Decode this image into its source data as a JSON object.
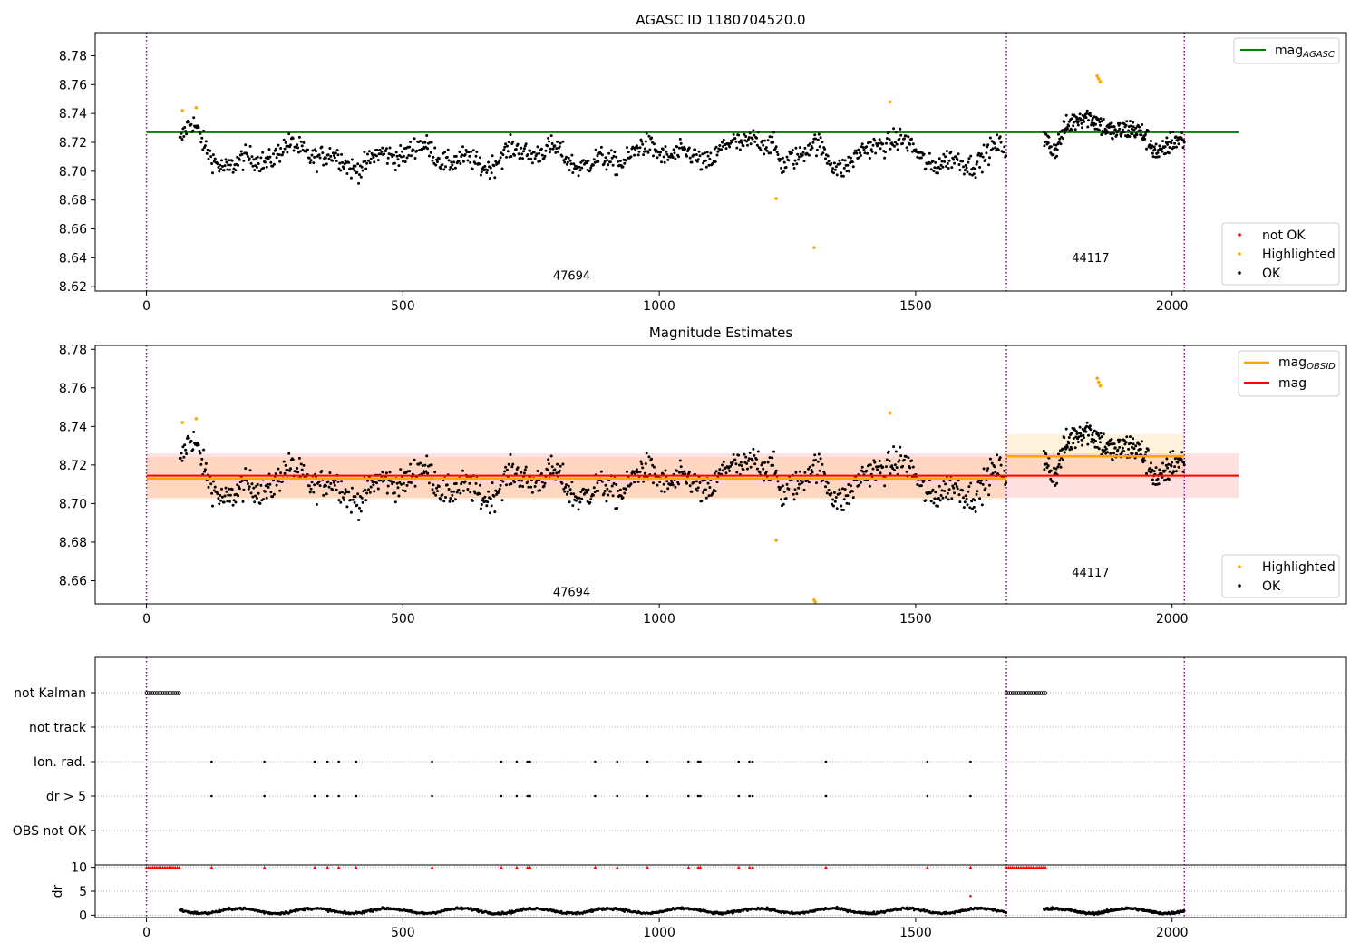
{
  "chart_data": [
    {
      "type": "scatter",
      "title": "AGASC ID 1180704520.0",
      "xlim": [
        -100,
        2340
      ],
      "ylim": [
        8.617,
        8.796
      ],
      "x_ticks": [
        0,
        500,
        1000,
        1500,
        2000
      ],
      "y_ticks": [
        8.62,
        8.64,
        8.66,
        8.68,
        8.7,
        8.72,
        8.74,
        8.76,
        8.78
      ],
      "obsid_boundaries": [
        0,
        1677,
        2024
      ],
      "obsid_labels": [
        {
          "text": "47694",
          "x": 838,
          "y": 8.625
        },
        {
          "text": "44117",
          "x": 1850,
          "y": 8.637
        }
      ],
      "reference_line": {
        "label": "mag",
        "subscript": "AGASC",
        "y": 8.727,
        "x": [
          0,
          2130
        ],
        "color": "#008000"
      },
      "ok_points": {
        "label": "OK",
        "color": "#000000",
        "segments": [
          {
            "x_start": 65,
            "x_end": 1677,
            "step": 1.6
          },
          {
            "x_start": 1750,
            "x_end": 2024,
            "step": 1.1
          }
        ]
      },
      "highlighted_points": {
        "label": "Highlighted",
        "color": "#ffa500",
        "x": [
          70,
          97,
          1228,
          1302,
          1450,
          1854,
          1857,
          1860
        ],
        "y": [
          8.742,
          8.744,
          8.681,
          8.647,
          8.748,
          8.766,
          8.764,
          8.762
        ]
      },
      "not_ok_points": {
        "label": "not OK",
        "color": "#ff0000",
        "x": [],
        "y": []
      },
      "legend_top": "upper-right",
      "legend_bottom": "lower-right"
    },
    {
      "type": "scatter",
      "title": "Magnitude Estimates",
      "xlim": [
        -100,
        2340
      ],
      "ylim": [
        8.648,
        8.782
      ],
      "x_ticks": [
        0,
        500,
        1000,
        1500,
        2000
      ],
      "y_ticks": [
        8.66,
        8.68,
        8.7,
        8.72,
        8.74,
        8.76,
        8.78
      ],
      "obsid_boundaries": [
        0,
        1677,
        2024
      ],
      "obsid_labels": [
        {
          "text": "47694",
          "x": 838,
          "y": 8.652
        },
        {
          "text": "44117",
          "x": 1850,
          "y": 8.662
        }
      ],
      "mag_line": {
        "label": "mag",
        "y": 8.7145,
        "x": [
          0,
          2130
        ],
        "band": [
          8.703,
          8.726
        ],
        "color": "#ff0000"
      },
      "obsid_mag": {
        "label": "mag",
        "subscript": "OBSID",
        "color": "#ffa500",
        "segments": [
          {
            "x": [
              0,
              1677
            ],
            "y": 8.713,
            "band": [
              8.702,
              8.724
            ]
          },
          {
            "x": [
              1677,
              2024
            ],
            "y": 8.7245,
            "band": [
              8.713,
              8.736
            ]
          }
        ]
      },
      "ok_points": {
        "label": "OK",
        "color": "#000000"
      },
      "highlighted_points": {
        "label": "Highlighted",
        "color": "#ffa500",
        "x": [
          70,
          97,
          1228,
          1302,
          1304,
          1450,
          1854,
          1857,
          1860
        ],
        "y": [
          8.742,
          8.744,
          8.681,
          8.65,
          8.649,
          8.747,
          8.765,
          8.763,
          8.761
        ]
      },
      "legend_top": "upper-right",
      "legend_bottom": "lower-right"
    },
    {
      "type": "scatter",
      "title": "",
      "xlim": [
        -100,
        2340
      ],
      "x_ticks": [
        0,
        500,
        1000,
        1500,
        2000
      ],
      "flag_rows": [
        "not Kalman",
        "not track",
        "Ion. rad.",
        "dr > 5",
        "OBS not OK"
      ],
      "flag_events": {
        "not Kalman": [
          [
            0,
            65
          ],
          [
            1677,
            1755
          ]
        ],
        "Ion. rad.": [
          127,
          230,
          328,
          353,
          375,
          409,
          557,
          692,
          722,
          743,
          748,
          875,
          918,
          977,
          1057,
          1076,
          1080,
          1155,
          1176,
          1182,
          1325,
          1523,
          1607
        ],
        "dr > 5": [
          127,
          230,
          328,
          353,
          375,
          409,
          557,
          692,
          722,
          743,
          748,
          875,
          918,
          977,
          1057,
          1076,
          1080,
          1155,
          1176,
          1182,
          1325,
          1523,
          1607
        ]
      },
      "dr_panel": {
        "ylabel": "dr",
        "ylim": [
          -0.5,
          10.5
        ],
        "y_ticks": [
          0,
          5,
          10
        ],
        "clip_value": 10,
        "clipped_segments": [
          [
            0,
            65
          ],
          [
            1677,
            1755
          ]
        ],
        "clipped_points": [
          127,
          230,
          328,
          353,
          375,
          409,
          557,
          692,
          722,
          743,
          748,
          875,
          918,
          977,
          1057,
          1076,
          1080,
          1155,
          1176,
          1182,
          1325,
          1523,
          1607
        ],
        "outlier": {
          "x": 1607,
          "y": 4
        },
        "typical_range": [
          0.2,
          1.8
        ]
      }
    }
  ]
}
